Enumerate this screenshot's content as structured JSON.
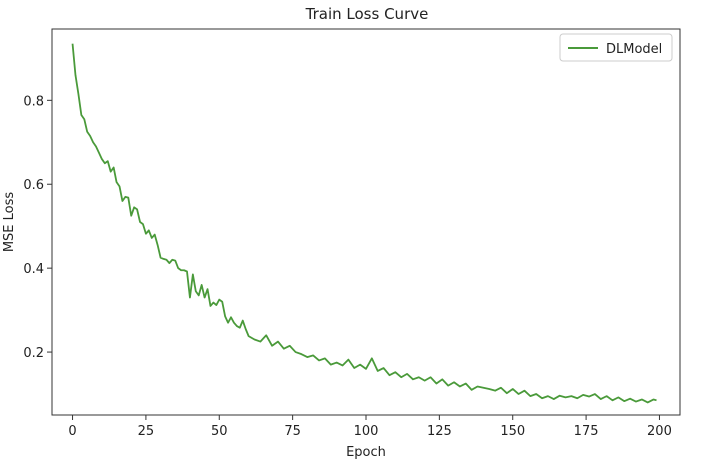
{
  "chart_data": {
    "type": "line",
    "title": "Train Loss Curve",
    "xlabel": "Epoch",
    "ylabel": "MSE Loss",
    "xlim": [
      -7,
      207
    ],
    "ylim": [
      0.05,
      0.97
    ],
    "xticks": [
      0,
      25,
      50,
      75,
      100,
      125,
      150,
      175,
      200
    ],
    "yticks": [
      0.2,
      0.4,
      0.6,
      0.8
    ],
    "ytick_labels": [
      "0.2",
      "0.4",
      "0.6",
      "0.8"
    ],
    "grid": false,
    "legend_position": "top-right",
    "series": [
      {
        "name": "DLModel",
        "color": "#4a9a3a",
        "x": [
          0,
          1,
          2,
          3,
          4,
          5,
          6,
          7,
          8,
          9,
          10,
          11,
          12,
          13,
          14,
          15,
          16,
          17,
          18,
          19,
          20,
          21,
          22,
          23,
          24,
          25,
          26,
          27,
          28,
          29,
          30,
          31,
          32,
          33,
          34,
          35,
          36,
          37,
          38,
          39,
          40,
          41,
          42,
          43,
          44,
          45,
          46,
          47,
          48,
          49,
          50,
          51,
          52,
          53,
          54,
          55,
          56,
          57,
          58,
          59,
          60,
          62,
          64,
          66,
          68,
          70,
          72,
          74,
          76,
          78,
          80,
          82,
          84,
          86,
          88,
          90,
          92,
          94,
          96,
          98,
          100,
          102,
          104,
          106,
          108,
          110,
          112,
          114,
          116,
          118,
          120,
          122,
          124,
          126,
          128,
          130,
          132,
          134,
          136,
          138,
          140,
          142,
          144,
          146,
          148,
          150,
          152,
          154,
          156,
          158,
          160,
          162,
          164,
          166,
          168,
          170,
          172,
          174,
          176,
          178,
          180,
          182,
          184,
          186,
          188,
          190,
          192,
          194,
          196,
          198,
          199
        ],
        "values": [
          0.935,
          0.86,
          0.815,
          0.765,
          0.755,
          0.725,
          0.715,
          0.7,
          0.69,
          0.675,
          0.66,
          0.65,
          0.655,
          0.63,
          0.64,
          0.605,
          0.595,
          0.56,
          0.57,
          0.568,
          0.525,
          0.545,
          0.54,
          0.51,
          0.505,
          0.482,
          0.49,
          0.472,
          0.48,
          0.455,
          0.425,
          0.422,
          0.42,
          0.412,
          0.42,
          0.418,
          0.4,
          0.395,
          0.395,
          0.392,
          0.33,
          0.385,
          0.345,
          0.335,
          0.36,
          0.33,
          0.35,
          0.31,
          0.318,
          0.312,
          0.325,
          0.32,
          0.285,
          0.27,
          0.283,
          0.27,
          0.262,
          0.258,
          0.275,
          0.255,
          0.238,
          0.23,
          0.225,
          0.24,
          0.215,
          0.225,
          0.208,
          0.215,
          0.2,
          0.195,
          0.188,
          0.192,
          0.18,
          0.185,
          0.17,
          0.175,
          0.168,
          0.182,
          0.162,
          0.17,
          0.16,
          0.185,
          0.155,
          0.162,
          0.145,
          0.152,
          0.14,
          0.148,
          0.135,
          0.14,
          0.132,
          0.14,
          0.125,
          0.135,
          0.12,
          0.128,
          0.118,
          0.125,
          0.11,
          0.118,
          0.115,
          0.112,
          0.108,
          0.115,
          0.102,
          0.112,
          0.1,
          0.108,
          0.095,
          0.1,
          0.09,
          0.095,
          0.088,
          0.096,
          0.092,
          0.095,
          0.09,
          0.098,
          0.094,
          0.1,
          0.088,
          0.095,
          0.085,
          0.092,
          0.083,
          0.089,
          0.082,
          0.087,
          0.08,
          0.087,
          0.085
        ]
      }
    ]
  }
}
